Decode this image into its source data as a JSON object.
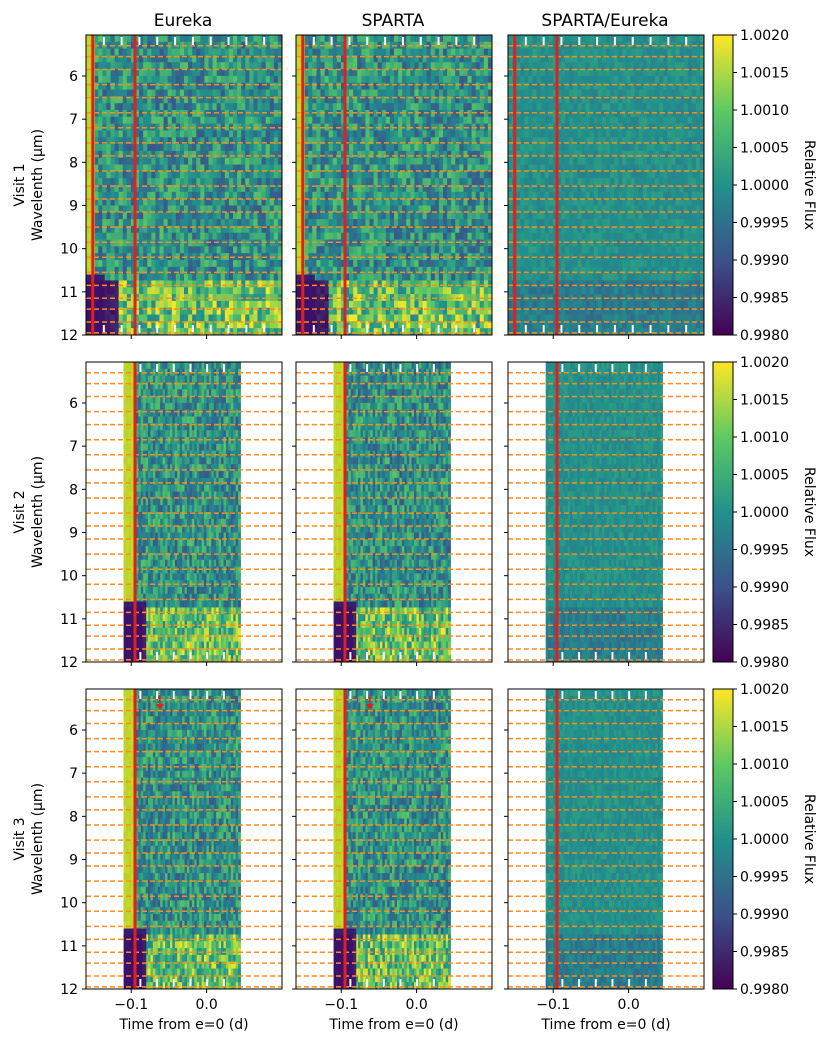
{
  "chart_data": {
    "type": "heatmap",
    "panels_layout": "3 rows (visits) x 3 columns (reductions)",
    "column_titles": [
      "Eureka",
      "SPARTA",
      "SPARTA/Eureka"
    ],
    "row_labels": [
      "Visit 1",
      "Visit 2",
      "Visit 3"
    ],
    "ylabel": "Wavelenth (μm)",
    "xlabel": "Time from e=0 (d)",
    "colorbar_label": "Relative Flux",
    "colorbar_range": [
      0.998,
      1.002
    ],
    "colorbar_ticks": [
      "0.9980",
      "0.9985",
      "0.9990",
      "0.9995",
      "1.0000",
      "1.0005",
      "1.0010",
      "1.0015",
      "1.0020"
    ],
    "colormap": [
      "#440154",
      "#3b528b",
      "#21918c",
      "#5ec962",
      "#fde725"
    ],
    "x_range": [
      -0.16,
      0.1
    ],
    "x_ticks": [
      -0.1,
      0.0
    ],
    "x_tick_labels": [
      "−0.1",
      "0.0"
    ],
    "y_range": [
      5.05,
      12.0
    ],
    "y_ticks": [
      6,
      7,
      8,
      9,
      10,
      11,
      12
    ],
    "y_tick_labels": [
      "6",
      "7",
      "8",
      "9",
      "10",
      "11",
      "12"
    ],
    "wavelength_bin_edges_dashed": [
      5.3,
      5.55,
      5.85,
      6.2,
      6.5,
      6.85,
      7.2,
      7.55,
      7.85,
      8.2,
      8.55,
      8.85,
      9.15,
      9.5,
      9.85,
      10.2,
      10.55,
      10.85,
      11.15,
      11.4,
      11.7,
      11.95
    ],
    "eclipse_marker_time": -0.095,
    "visits": [
      {
        "name": "Visit 1",
        "t_start": -0.16,
        "t_end": 0.1,
        "early_ramp_end": -0.155,
        "gap_marks": 10
      },
      {
        "name": "Visit 2",
        "t_start": -0.11,
        "t_end": 0.045,
        "early_ramp_end": -0.1,
        "gap_marks": 6
      },
      {
        "name": "Visit 3",
        "t_start": -0.11,
        "t_end": 0.045,
        "early_ramp_end": -0.1,
        "gap_marks": 6,
        "arrow_time": -0.062
      }
    ],
    "colors": {
      "bin_lines": "#ff8c1a",
      "eclipse_line": "#e02020",
      "gap_marks": "#ffffff"
    }
  }
}
